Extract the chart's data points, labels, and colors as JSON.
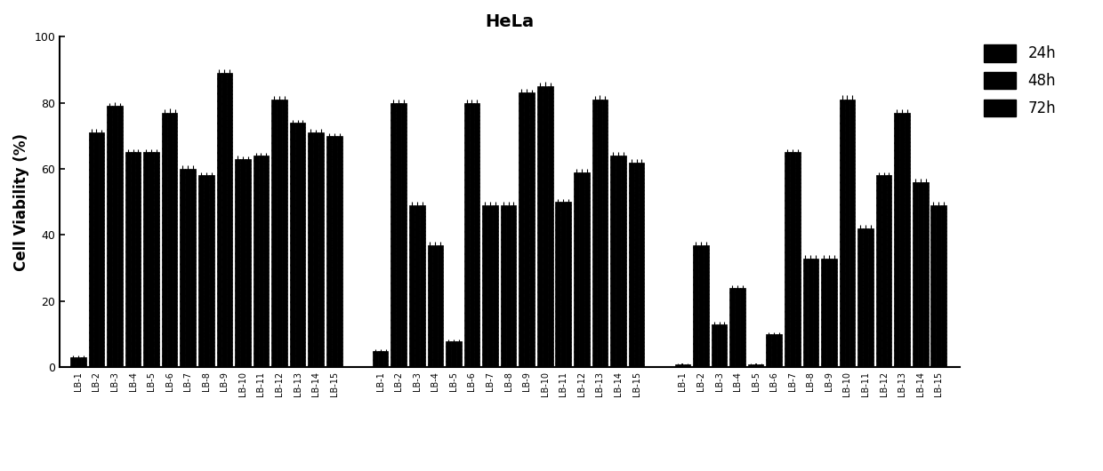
{
  "title": "HeLa",
  "ylabel": "Cell Viability (%)",
  "ylim": [
    0,
    100
  ],
  "yticks": [
    0,
    20,
    40,
    60,
    80,
    100
  ],
  "compounds": [
    "LB-1",
    "LB-2",
    "LB-3",
    "LB-4",
    "LB-5",
    "LB-6",
    "LB-7",
    "LB-8",
    "LB-9",
    "LB-10",
    "LB-11",
    "LB-12",
    "LB-13",
    "LB-14",
    "LB-15"
  ],
  "data_24h": [
    3,
    71,
    79,
    65,
    65,
    77,
    60,
    58,
    89,
    63,
    64,
    81,
    74,
    71,
    70
  ],
  "data_48h": [
    3,
    71,
    79,
    65,
    65,
    77,
    60,
    58,
    89,
    63,
    64,
    81,
    74,
    71,
    70
  ],
  "data_72h": [
    3,
    71,
    79,
    65,
    65,
    77,
    60,
    58,
    89,
    63,
    64,
    81,
    74,
    71,
    70
  ],
  "err_24h": [
    0.5,
    1.0,
    1.0,
    0.8,
    0.8,
    1.0,
    1.0,
    1.0,
    1.2,
    1.0,
    0.8,
    1.0,
    0.8,
    1.0,
    0.8
  ],
  "err_48h": [
    0.5,
    1.0,
    1.2,
    0.8,
    0.8,
    1.2,
    1.0,
    0.8,
    1.2,
    0.8,
    0.8,
    1.0,
    0.8,
    0.8,
    0.8
  ],
  "err_72h": [
    0.5,
    0.8,
    1.0,
    0.8,
    0.8,
    1.0,
    1.0,
    0.8,
    1.0,
    0.8,
    0.8,
    1.0,
    0.8,
    1.0,
    0.8
  ],
  "data2_24h": [
    5,
    80,
    49,
    37,
    8,
    80,
    49,
    49,
    83,
    85,
    50,
    59,
    81,
    64,
    62
  ],
  "data2_48h": [
    5,
    80,
    49,
    37,
    8,
    80,
    49,
    49,
    83,
    85,
    50,
    59,
    81,
    64,
    62
  ],
  "data2_72h": [
    5,
    80,
    49,
    37,
    8,
    80,
    49,
    49,
    83,
    85,
    50,
    59,
    81,
    64,
    62
  ],
  "err2_24h": [
    0.5,
    1.0,
    1.0,
    1.0,
    0.5,
    1.0,
    1.0,
    1.0,
    1.2,
    1.0,
    1.0,
    1.0,
    1.0,
    1.0,
    1.0
  ],
  "err2_48h": [
    0.5,
    1.0,
    1.0,
    1.0,
    0.5,
    1.0,
    1.0,
    1.0,
    1.2,
    1.2,
    1.0,
    1.0,
    1.2,
    1.0,
    1.0
  ],
  "err2_72h": [
    0.5,
    1.0,
    1.0,
    1.0,
    0.5,
    1.0,
    1.0,
    1.0,
    1.0,
    1.0,
    1.0,
    1.0,
    1.0,
    1.0,
    1.0
  ],
  "data3_24h": [
    1,
    37,
    13,
    24,
    1,
    10,
    65,
    33,
    33,
    81,
    42,
    58,
    77,
    56,
    49
  ],
  "data3_48h": [
    1,
    37,
    13,
    24,
    1,
    10,
    65,
    33,
    33,
    81,
    42,
    58,
    77,
    56,
    49
  ],
  "data3_72h": [
    1,
    37,
    13,
    24,
    1,
    10,
    65,
    33,
    33,
    81,
    42,
    58,
    77,
    56,
    49
  ],
  "err3_24h": [
    0.2,
    1.0,
    0.8,
    0.8,
    0.2,
    0.5,
    1.0,
    1.0,
    1.0,
    1.2,
    1.0,
    1.0,
    1.0,
    1.0,
    1.0
  ],
  "err3_48h": [
    0.2,
    1.0,
    0.8,
    0.8,
    0.2,
    0.5,
    1.0,
    1.0,
    1.0,
    1.2,
    1.0,
    1.0,
    1.0,
    1.0,
    1.0
  ],
  "err3_72h": [
    0.2,
    1.0,
    0.8,
    0.8,
    0.2,
    0.5,
    1.0,
    1.0,
    1.0,
    1.2,
    1.0,
    1.0,
    1.0,
    1.0,
    1.0
  ],
  "title_fontsize": 14,
  "axis_fontsize": 12,
  "tick_fontsize": 7,
  "legend_fontsize": 12
}
